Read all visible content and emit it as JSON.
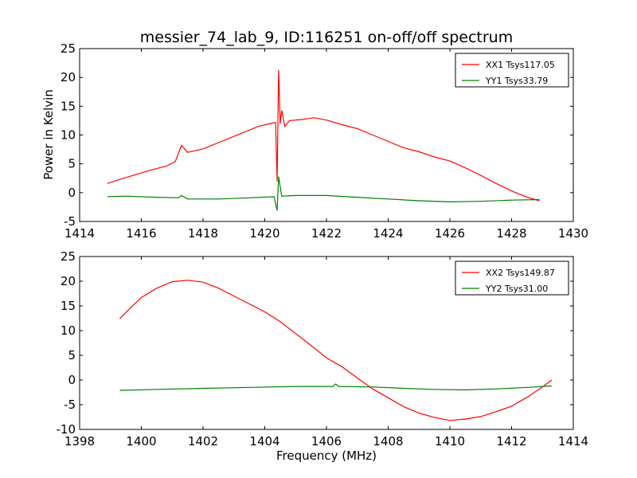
{
  "figure": {
    "title": "messier_74_lab_9, ID:116251 on-off/off spectrum",
    "xlabel": "Frequency (MHz)",
    "ylabel": "Power in Kelvin"
  },
  "chart_data": [
    {
      "type": "line",
      "xlim": [
        1414,
        1430
      ],
      "ylim": [
        -5,
        25
      ],
      "xticks": [
        1414,
        1416,
        1418,
        1420,
        1422,
        1424,
        1426,
        1428,
        1430
      ],
      "yticks": [
        -5,
        0,
        5,
        10,
        15,
        20,
        25
      ],
      "legend_position": "top-right",
      "grid": false,
      "series": [
        {
          "name": "XX1 Tsys117.05",
          "color": "#ff0000",
          "points": [
            [
              1414.9,
              1.6
            ],
            [
              1415.3,
              2.3
            ],
            [
              1415.8,
              3.1
            ],
            [
              1416.3,
              3.9
            ],
            [
              1416.8,
              4.6
            ],
            [
              1417.1,
              5.4
            ],
            [
              1417.3,
              8.2
            ],
            [
              1417.5,
              7.0
            ],
            [
              1418.0,
              7.6
            ],
            [
              1418.6,
              8.9
            ],
            [
              1419.2,
              10.2
            ],
            [
              1419.8,
              11.5
            ],
            [
              1420.2,
              12.0
            ],
            [
              1420.35,
              12.2
            ],
            [
              1420.4,
              2.0
            ],
            [
              1420.45,
              21.3
            ],
            [
              1420.5,
              12.0
            ],
            [
              1420.55,
              14.3
            ],
            [
              1420.65,
              11.5
            ],
            [
              1420.8,
              12.5
            ],
            [
              1421.2,
              12.7
            ],
            [
              1421.6,
              13.0
            ],
            [
              1422.0,
              12.6
            ],
            [
              1422.5,
              11.8
            ],
            [
              1423.0,
              11.1
            ],
            [
              1423.5,
              10.0
            ],
            [
              1424.0,
              8.9
            ],
            [
              1424.5,
              7.8
            ],
            [
              1425.0,
              7.1
            ],
            [
              1425.5,
              6.2
            ],
            [
              1426.0,
              5.5
            ],
            [
              1426.5,
              4.3
            ],
            [
              1427.0,
              3.0
            ],
            [
              1427.5,
              1.6
            ],
            [
              1428.0,
              0.3
            ],
            [
              1428.5,
              -0.8
            ],
            [
              1428.9,
              -1.4
            ]
          ]
        },
        {
          "name": "YY1 Tsys33.79",
          "color": "#008000",
          "points": [
            [
              1414.9,
              -0.7
            ],
            [
              1415.5,
              -0.6
            ],
            [
              1416.5,
              -0.8
            ],
            [
              1417.2,
              -0.9
            ],
            [
              1417.3,
              -0.5
            ],
            [
              1417.5,
              -1.1
            ],
            [
              1418.5,
              -1.1
            ],
            [
              1419.5,
              -0.9
            ],
            [
              1420.3,
              -0.7
            ],
            [
              1420.4,
              -3.1
            ],
            [
              1420.45,
              2.8
            ],
            [
              1420.55,
              -0.6
            ],
            [
              1421.0,
              -0.5
            ],
            [
              1422.0,
              -0.5
            ],
            [
              1423.0,
              -0.8
            ],
            [
              1424.0,
              -1.1
            ],
            [
              1425.0,
              -1.4
            ],
            [
              1426.0,
              -1.6
            ],
            [
              1427.0,
              -1.5
            ],
            [
              1428.0,
              -1.3
            ],
            [
              1428.9,
              -1.2
            ]
          ]
        }
      ]
    },
    {
      "type": "line",
      "xlim": [
        1398,
        1414
      ],
      "ylim": [
        -10,
        25
      ],
      "xticks": [
        1398,
        1400,
        1402,
        1404,
        1406,
        1408,
        1410,
        1412,
        1414
      ],
      "yticks": [
        -10,
        -5,
        0,
        5,
        10,
        15,
        20,
        25
      ],
      "legend_position": "top-right",
      "grid": false,
      "series": [
        {
          "name": "XX2 Tsys149.87",
          "color": "#ff0000",
          "points": [
            [
              1399.3,
              12.4
            ],
            [
              1399.6,
              14.3
            ],
            [
              1400.0,
              16.7
            ],
            [
              1400.5,
              18.6
            ],
            [
              1401.0,
              19.9
            ],
            [
              1401.5,
              20.2
            ],
            [
              1402.0,
              19.8
            ],
            [
              1402.5,
              18.6
            ],
            [
              1403.0,
              17.0
            ],
            [
              1403.5,
              15.4
            ],
            [
              1404.0,
              13.8
            ],
            [
              1404.5,
              11.8
            ],
            [
              1405.0,
              9.4
            ],
            [
              1405.5,
              7.0
            ],
            [
              1406.0,
              4.5
            ],
            [
              1406.5,
              2.7
            ],
            [
              1407.0,
              0.4
            ],
            [
              1407.5,
              -1.8
            ],
            [
              1408.0,
              -3.6
            ],
            [
              1408.5,
              -5.4
            ],
            [
              1409.0,
              -6.7
            ],
            [
              1409.5,
              -7.6
            ],
            [
              1410.0,
              -8.2
            ],
            [
              1410.5,
              -7.9
            ],
            [
              1411.0,
              -7.4
            ],
            [
              1411.5,
              -6.4
            ],
            [
              1412.0,
              -5.3
            ],
            [
              1412.5,
              -3.5
            ],
            [
              1413.0,
              -1.4
            ],
            [
              1413.3,
              0.0
            ]
          ]
        },
        {
          "name": "YY2 Tsys31.00",
          "color": "#008000",
          "points": [
            [
              1399.3,
              -2.1
            ],
            [
              1400.5,
              -1.9
            ],
            [
              1402.0,
              -1.7
            ],
            [
              1403.5,
              -1.5
            ],
            [
              1405.0,
              -1.3
            ],
            [
              1406.2,
              -1.3
            ],
            [
              1406.3,
              -0.8
            ],
            [
              1406.4,
              -1.3
            ],
            [
              1407.5,
              -1.4
            ],
            [
              1408.5,
              -1.7
            ],
            [
              1409.5,
              -1.9
            ],
            [
              1410.5,
              -2.0
            ],
            [
              1411.5,
              -1.8
            ],
            [
              1412.5,
              -1.5
            ],
            [
              1413.3,
              -1.2
            ]
          ]
        }
      ]
    }
  ]
}
